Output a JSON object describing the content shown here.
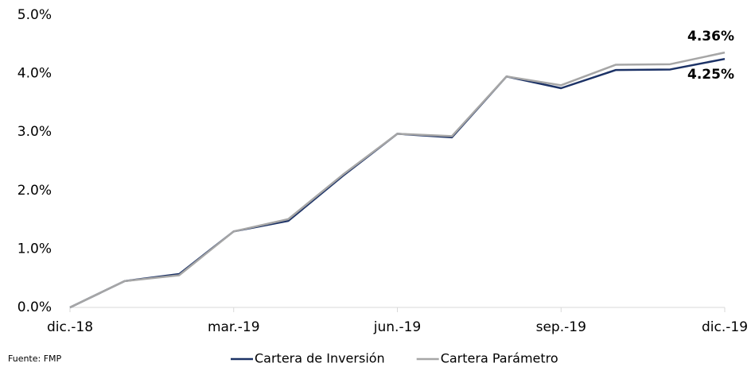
{
  "chart_data": {
    "type": "line",
    "categories": [
      "dic.-18",
      null,
      null,
      "mar.-19",
      null,
      null,
      "jun.-19",
      null,
      null,
      "sep.-19",
      null,
      null,
      "dic.-19"
    ],
    "series": [
      {
        "name": "Cartera de Inversión",
        "color": "#1c3266",
        "values": [
          0,
          0.45,
          0.57,
          1.3,
          1.48,
          2.25,
          2.97,
          2.91,
          3.95,
          3.75,
          4.06,
          4.07,
          4.25
        ],
        "value_labels": [
          null,
          null,
          null,
          null,
          null,
          null,
          null,
          null,
          null,
          null,
          null,
          null,
          "4.25%"
        ]
      },
      {
        "name": "Cartera Parámetro",
        "color": "#a6a6a6",
        "values": [
          0,
          0.45,
          0.55,
          1.3,
          1.51,
          2.27,
          2.97,
          2.93,
          3.95,
          3.8,
          4.15,
          4.16,
          4.36
        ],
        "value_labels": [
          null,
          null,
          null,
          null,
          null,
          null,
          null,
          null,
          null,
          null,
          null,
          null,
          "4.36%"
        ]
      }
    ],
    "ylim": [
      0,
      5
    ],
    "yticks": [
      {
        "value": 0,
        "label": "0.0%"
      },
      {
        "value": 1,
        "label": "1.0%"
      },
      {
        "value": 2,
        "label": "2.0%"
      },
      {
        "value": 3,
        "label": "3.0%"
      },
      {
        "value": 4,
        "label": "4.0%"
      },
      {
        "value": 5,
        "label": "5.0%"
      }
    ],
    "source": "Fuente: FMP",
    "legend": "bottom"
  }
}
